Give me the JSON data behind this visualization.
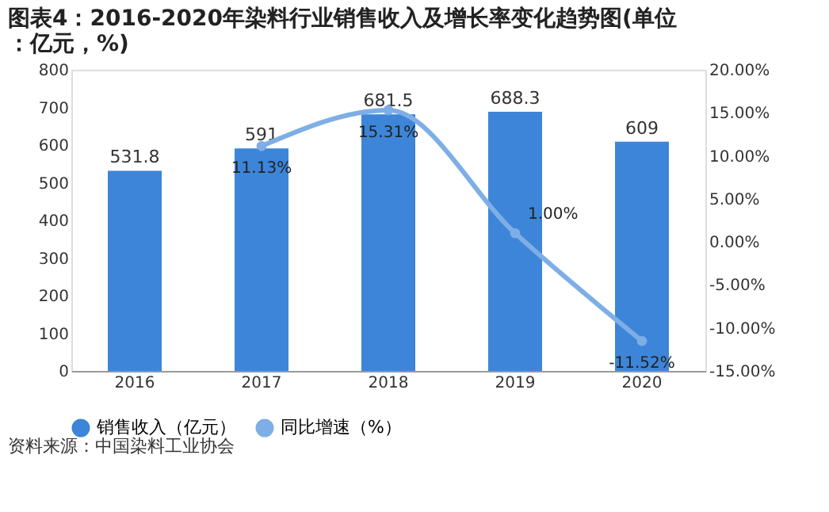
{
  "chart_data": {
    "type": "bar",
    "title": "图表4：2016-2020年染料行业销售收入及增长率变化趋势图(单位：亿元，%)",
    "categories": [
      "2016",
      "2017",
      "2018",
      "2019",
      "2020"
    ],
    "series": [
      {
        "name": "销售收入（亿元）",
        "color": "#3d85d8",
        "values": [
          531.8,
          591,
          681.5,
          688.3,
          609
        ]
      },
      {
        "name": "同比增速（%）",
        "type": "line",
        "axis": "y2",
        "color": "#7eaee6",
        "marker": "circle",
        "values": [
          null,
          11.13,
          15.31,
          1.0,
          -11.52
        ],
        "value_labels": [
          null,
          "11.13%",
          "15.31%",
          "1.00%",
          "-11.52%"
        ]
      }
    ],
    "data_labels": true,
    "ylim": [
      0,
      800
    ],
    "yticks": [
      0,
      100,
      200,
      300,
      400,
      500,
      600,
      700,
      800
    ],
    "y2lim": [
      -15,
      20
    ],
    "y2ticks": [
      {
        "value": -15,
        "label": "-15.00%"
      },
      {
        "value": -10,
        "label": "-10.00%"
      },
      {
        "value": -5,
        "label": "-5.00%"
      },
      {
        "value": 0,
        "label": "0.00%"
      },
      {
        "value": 5,
        "label": "5.00%"
      },
      {
        "value": 10,
        "label": "10.00%"
      },
      {
        "value": 15,
        "label": "15.00%"
      },
      {
        "value": 20,
        "label": "20.00%"
      }
    ],
    "legend": "bottom",
    "grid": false,
    "annotations": [
      "资料来源：中国染料工业协会"
    ]
  }
}
